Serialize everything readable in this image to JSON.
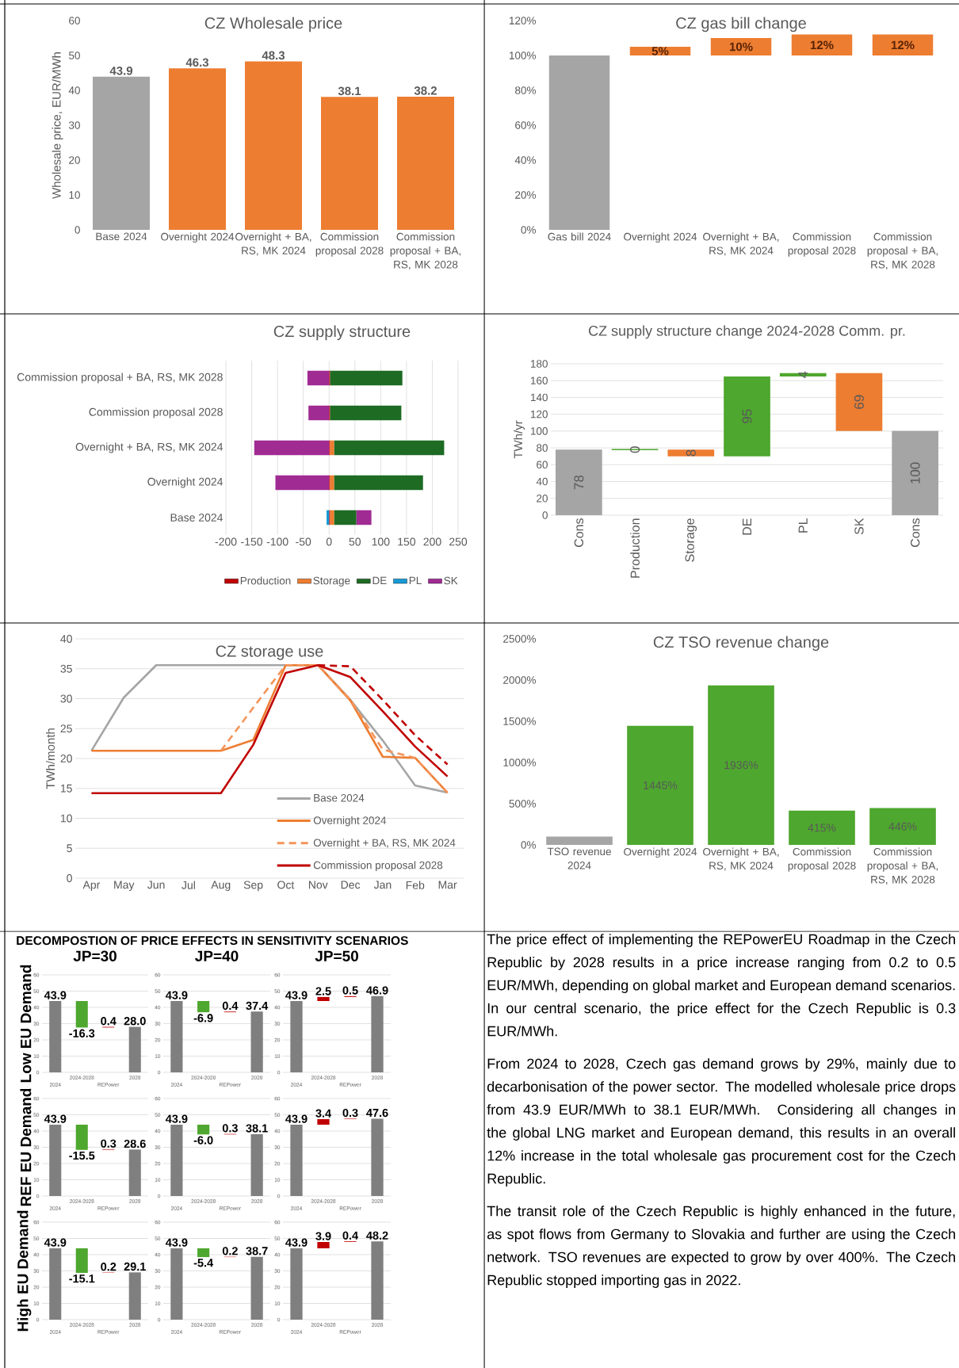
{
  "chart_data": [
    {
      "type": "bar",
      "title": "CZ Wholesale price",
      "ylabel": "Wholesale price, EUR/MWh",
      "categories": [
        "Base 2024",
        "Overnight 2024",
        "Overnight + BA, RS, MK 2024",
        "Commission proposal 2028",
        "Commission proposal + BA, RS, MK 2028"
      ],
      "values": [
        43.9,
        46.3,
        48.3,
        38.1,
        38.2
      ],
      "colors": [
        "#a5a5a5",
        "#ed7d31",
        "#ed7d31",
        "#ed7d31",
        "#ed7d31"
      ],
      "ylim": [
        0,
        60
      ],
      "yticks": [
        0,
        10,
        20,
        30,
        40,
        50,
        60
      ],
      "data_labels": true
    },
    {
      "type": "bar",
      "title": "CZ gas bill change",
      "categories": [
        "Gas bill 2024",
        "Overnight 2024",
        "Overnight + BA, RS, MK 2024",
        "Commission proposal 2028",
        "Commission proposal + BA, RS, MK 2028"
      ],
      "values": [
        100,
        5,
        10,
        12,
        12
      ],
      "base": [
        0,
        100,
        100,
        100,
        100
      ],
      "value_labels": [
        null,
        "5%",
        "10%",
        "12%",
        "12%"
      ],
      "colors": [
        "#a5a5a5",
        "#ed7d31",
        "#ed7d31",
        "#ed7d31",
        "#ed7d31"
      ],
      "ylim": [
        0,
        120
      ],
      "yticks": [
        {
          "value": 0,
          "label": "0%"
        },
        {
          "value": 20,
          "label": "20%"
        },
        {
          "value": 40,
          "label": "40%"
        },
        {
          "value": 60,
          "label": "60%"
        },
        {
          "value": 80,
          "label": "80%"
        },
        {
          "value": 100,
          "label": "100%"
        },
        {
          "value": 120,
          "label": "120%"
        }
      ]
    },
    {
      "type": "bar",
      "orientation": "horizontal",
      "stacked": true,
      "title": "CZ supply structure",
      "categories": [
        "Commission proposal + BA, RS, MK 2028",
        "Commission proposal 2028",
        "Overnight + BA, RS, MK 2024",
        "Overnight 2024",
        "Base 2024"
      ],
      "series": [
        {
          "name": "Production",
          "color": "#c00000",
          "values": [
            2,
            2,
            2,
            2,
            2
          ]
        },
        {
          "name": "Storage",
          "color": "#ed7d31",
          "values": [
            0,
            0,
            8,
            8,
            8
          ]
        },
        {
          "name": "DE",
          "color": "#1e6b24",
          "values": [
            140,
            138,
            213,
            172,
            43
          ]
        },
        {
          "name": "PL",
          "color": "#169ad6",
          "values": [
            0,
            0,
            0,
            0,
            -5
          ]
        },
        {
          "name": "SK",
          "color": "#a02b93",
          "values": [
            -42,
            -40,
            -145,
            -104,
            29
          ]
        }
      ],
      "xlim": [
        -200,
        250
      ],
      "xticks": [
        -200,
        -150,
        -100,
        -50,
        0,
        50,
        100,
        150,
        200,
        250
      ],
      "grid": "x",
      "legend": "bottom"
    },
    {
      "type": "bar",
      "title": "CZ supply structure change 2024-2028 Comm. pr.",
      "ylabel": "TWh/yr",
      "categories": [
        "Cons",
        "Production",
        "Storage",
        "DE",
        "PL",
        "SK",
        "Cons"
      ],
      "values": [
        78,
        0,
        8,
        95,
        4,
        69,
        100
      ],
      "base": [
        0,
        78,
        70,
        70,
        165,
        100,
        0
      ],
      "colors": [
        "#a5a5a5",
        "#4ea72e",
        "#ed7d31",
        "#4ea72e",
        "#4ea72e",
        "#ed7d31",
        "#a5a5a5"
      ],
      "ylim": [
        0,
        180
      ],
      "yticks": [
        0,
        20,
        40,
        60,
        80,
        100,
        120,
        140,
        160,
        180
      ],
      "grid": "y",
      "data_labels": true
    },
    {
      "type": "line",
      "title": "CZ storage use",
      "ylabel": "TWh/month",
      "categories": [
        "Apr",
        "May",
        "Jun",
        "Jul",
        "Aug",
        "Sep",
        "Oct",
        "Nov",
        "Dec",
        "Jan",
        "Feb",
        "Mar"
      ],
      "series": [
        {
          "name": "Base 2024",
          "color": "#a5a5a5",
          "values": [
            21.3,
            30.2,
            35.6,
            35.6,
            35.6,
            35.6,
            35.6,
            35.6,
            29.8,
            23,
            15.5,
            14.3
          ]
        },
        {
          "name": "Overnight 2024",
          "color": "#ed7d31",
          "values": [
            21.3,
            21.3,
            21.3,
            21.3,
            21.3,
            23.1,
            35.6,
            35.6,
            29.7,
            20.3,
            20.1,
            14.3
          ]
        },
        {
          "name": "Overnight + BA, RS, MK 2024",
          "color": "#f4945a",
          "line_style": "dashed",
          "values": [
            null,
            null,
            null,
            null,
            21.3,
            28.5,
            35.6,
            35.6,
            29.8,
            21.5,
            20.1,
            14.3
          ]
        },
        {
          "name": "Commission proposal 2028",
          "color": "#c00000",
          "values": [
            14.2,
            14.2,
            14.2,
            14.2,
            14.2,
            22.3,
            34.3,
            35.6,
            33.6,
            27.9,
            22,
            17
          ]
        },
        {
          "color": "#c00000",
          "line_style": "dashed",
          "values": [
            null,
            null,
            null,
            null,
            null,
            null,
            null,
            35.6,
            35.4,
            29.8,
            23.9,
            19
          ]
        }
      ],
      "ylim": [
        0,
        40
      ],
      "yticks": [
        0,
        5,
        10,
        15,
        20,
        25,
        30,
        35,
        40
      ],
      "grid": "y",
      "legend": "bottom right",
      "line_style": "solid",
      "marker": "none"
    },
    {
      "type": "bar",
      "title": "CZ TSO revenue change",
      "categories": [
        "TSO revenue 2024",
        "Overnight 2024",
        "Overnight + BA, RS, MK 2024",
        "Commission proposal 2028",
        "Commission proposal + BA, RS, MK 2028"
      ],
      "values": [
        100,
        1445,
        1936,
        415,
        446
      ],
      "value_labels": [
        null,
        "1445%",
        "1936%",
        "415%",
        "446%"
      ],
      "colors": [
        "#a5a5a5",
        "#4ea72e",
        "#4ea72e",
        "#4ea72e",
        "#4ea72e"
      ],
      "ylim": [
        0,
        2500
      ],
      "yticks": [
        {
          "value": 0,
          "label": "0%"
        },
        {
          "value": 500,
          "label": "500%"
        },
        {
          "value": 1000,
          "label": "1000%"
        },
        {
          "value": 1500,
          "label": "1500%"
        },
        {
          "value": 2000,
          "label": "2000%"
        },
        {
          "value": 2500,
          "label": "2500%"
        }
      ]
    },
    {
      "type": "other",
      "title": "DECOMPOSTION OF PRICE EFFECTS IN SENSITIVITY SCENARIOS"
    },
    {
      "type": "bar",
      "title": "JP=30",
      "ylabel": "Low EU Demand",
      "categories": [
        "2024",
        "2024-2028",
        "REPower",
        "2028"
      ],
      "values": [
        43.9,
        -16.3,
        0.4,
        28.0
      ],
      "base": [
        0,
        43.9,
        27.6,
        0
      ],
      "value_labels": [
        "43.9",
        "-16.3",
        "0.4",
        "28.0"
      ],
      "colors": [
        "#7f7f7f",
        "#4ea72e",
        "#c00000",
        "#7f7f7f"
      ],
      "ylim": [
        0,
        60
      ],
      "yticks": [
        0,
        10,
        20,
        30,
        40,
        50,
        60
      ],
      "grid": "y"
    },
    {
      "type": "bar",
      "title": "JP=40",
      "categories": [
        "2024",
        "2024-2028",
        "REPower",
        "2028"
      ],
      "values": [
        43.9,
        -6.9,
        0.4,
        37.4
      ],
      "base": [
        0,
        43.9,
        37.0,
        0
      ],
      "value_labels": [
        "43.9",
        "-6.9",
        "0.4",
        "37.4"
      ],
      "colors": [
        "#7f7f7f",
        "#4ea72e",
        "#c00000",
        "#7f7f7f"
      ],
      "ylim": [
        0,
        60
      ],
      "yticks": [
        0,
        10,
        20,
        30,
        40,
        50,
        60
      ],
      "grid": "y"
    },
    {
      "type": "bar",
      "title": "JP=50",
      "categories": [
        "2024",
        "2024-2028",
        "REPower",
        "2028"
      ],
      "values": [
        43.9,
        2.5,
        0.5,
        46.9
      ],
      "base": [
        0,
        43.9,
        46.4,
        0
      ],
      "value_labels": [
        "43.9",
        "2.5",
        "0.5",
        "46.9"
      ],
      "colors": [
        "#7f7f7f",
        "#c00000",
        "#c00000",
        "#7f7f7f"
      ],
      "ylim": [
        0,
        60
      ],
      "yticks": [
        0,
        10,
        20,
        30,
        40,
        50,
        60
      ],
      "grid": "y"
    },
    {
      "type": "bar",
      "ylabel": "REF EU Demand",
      "categories": [
        "2024",
        "2024-2028",
        "REPower",
        "2028"
      ],
      "values": [
        43.9,
        -15.5,
        0.3,
        28.6
      ],
      "base": [
        0,
        43.9,
        28.4,
        0
      ],
      "value_labels": [
        "43.9",
        "-15.5",
        "0.3",
        "28.6"
      ],
      "colors": [
        "#7f7f7f",
        "#4ea72e",
        "#c00000",
        "#7f7f7f"
      ],
      "ylim": [
        0,
        60
      ],
      "yticks": [
        0,
        10,
        20,
        30,
        40,
        50,
        60
      ],
      "grid": "y"
    },
    {
      "type": "bar",
      "categories": [
        "2024",
        "2024-2028",
        "REPower",
        "2028"
      ],
      "values": [
        43.9,
        -6.0,
        0.3,
        38.1
      ],
      "base": [
        0,
        43.9,
        37.9,
        0
      ],
      "value_labels": [
        "43.9",
        "-6.0",
        "0.3",
        "38.1"
      ],
      "colors": [
        "#7f7f7f",
        "#4ea72e",
        "#c00000",
        "#7f7f7f"
      ],
      "ylim": [
        0,
        60
      ],
      "yticks": [
        0,
        10,
        20,
        30,
        40,
        50,
        60
      ],
      "grid": "y"
    },
    {
      "type": "bar",
      "categories": [
        "2024",
        "2024-2028",
        "REPower",
        "2028"
      ],
      "values": [
        43.9,
        3.4,
        0.3,
        47.6
      ],
      "base": [
        0,
        43.9,
        47.3,
        0
      ],
      "value_labels": [
        "43.9",
        "3.4",
        "0.3",
        "47.6"
      ],
      "colors": [
        "#7f7f7f",
        "#c00000",
        "#c00000",
        "#7f7f7f"
      ],
      "ylim": [
        0,
        60
      ],
      "yticks": [
        0,
        10,
        20,
        30,
        40,
        50,
        60
      ],
      "grid": "y"
    },
    {
      "type": "bar",
      "ylabel": "High EU Demand",
      "categories": [
        "2024",
        "2024-2028",
        "REPower",
        "2028"
      ],
      "values": [
        43.9,
        -15.1,
        0.2,
        29.1
      ],
      "base": [
        0,
        43.9,
        28.8,
        0
      ],
      "value_labels": [
        "43.9",
        "-15.1",
        "0.2",
        "29.1"
      ],
      "colors": [
        "#7f7f7f",
        "#4ea72e",
        "#c00000",
        "#7f7f7f"
      ],
      "ylim": [
        0,
        60
      ],
      "yticks": [
        0,
        10,
        20,
        30,
        40,
        50,
        60
      ],
      "grid": "y"
    },
    {
      "type": "bar",
      "categories": [
        "2024",
        "2024-2028",
        "REPower",
        "2028"
      ],
      "values": [
        43.9,
        -5.4,
        0.2,
        38.7
      ],
      "base": [
        0,
        43.9,
        38.5,
        0
      ],
      "value_labels": [
        "43.9",
        "-5.4",
        "0.2",
        "38.7"
      ],
      "colors": [
        "#7f7f7f",
        "#4ea72e",
        "#c00000",
        "#7f7f7f"
      ],
      "ylim": [
        0,
        60
      ],
      "yticks": [
        0,
        10,
        20,
        30,
        40,
        50,
        60
      ],
      "grid": "y"
    },
    {
      "type": "bar",
      "categories": [
        "2024",
        "2024-2028",
        "REPower",
        "2028"
      ],
      "values": [
        43.9,
        3.9,
        0.4,
        48.2
      ],
      "base": [
        0,
        43.9,
        47.8,
        0
      ],
      "value_labels": [
        "43.9",
        "3.9",
        "0.4",
        "48.2"
      ],
      "colors": [
        "#7f7f7f",
        "#c00000",
        "#c00000",
        "#7f7f7f"
      ],
      "ylim": [
        0,
        60
      ],
      "yticks": [
        0,
        10,
        20,
        30,
        40,
        50,
        60
      ],
      "grid": "y"
    },
    {
      "type": "other",
      "annotations": [
        "The price effect of implementing the REPowerEU Roadmap in the Czech Republic by 2028 results in a price increase ranging from 0.2 to 0.5 EUR/MWh, depending on global market and European demand scenarios. In our central scenario, the price effect for the Czech Republic is 0.3 EUR/MWh.",
        "From 2024 to 2028, Czech gas demand grows by 29%, mainly due to decarbonisation of the power sector. The modelled wholesale price drops from 43.9 EUR/MWh to 38.1 EUR/MWh. Considering all changes in the global LNG market and European demand, this results in an overall 12% increase in the total wholesale gas procurement cost for the Czech Republic.",
        "The transit role of the Czech Republic is highly enhanced in the future, as spot flows from Germany to Slovakia and further are using the Czech network. TSO revenues are expected to grow by over 400%. The Czech Republic stopped importing gas in 2022."
      ]
    }
  ]
}
